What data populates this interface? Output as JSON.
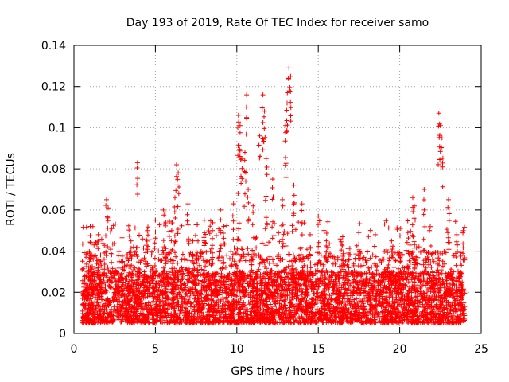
{
  "chart_data": {
    "type": "scatter",
    "title": "Day 193 of 2019, Rate Of TEC Index for receiver samo",
    "xlabel": "GPS time / hours",
    "ylabel": "ROTI / TECUs",
    "xlim": [
      0,
      25
    ],
    "ylim": [
      0,
      0.14
    ],
    "x_ticks": [
      0,
      5,
      10,
      15,
      20,
      25
    ],
    "x_tick_labels": [
      "0",
      "5",
      "10",
      "15",
      "20",
      "25"
    ],
    "y_ticks": [
      0,
      0.02,
      0.04,
      0.06,
      0.08,
      0.1,
      0.12,
      0.14
    ],
    "y_tick_labels": [
      "0",
      "0.02",
      "0.04",
      "0.06",
      "0.08",
      "0.1",
      "0.12",
      "0.14"
    ],
    "grid": true,
    "marker": "+",
    "colors": {
      "series": "#ff0000",
      "grid": "#a0a0a0",
      "axis": "#000000"
    },
    "x_range_data": [
      0.5,
      24.0
    ],
    "dense_band": {
      "typical_min": 0.005,
      "typical_max": 0.03
    },
    "series": [
      {
        "name": "ROTI",
        "x": [
          1.0,
          1.5,
          2.0,
          2.1,
          3.0,
          3.5,
          3.9,
          4.5,
          5.0,
          5.5,
          5.6,
          6.0,
          6.2,
          6.3,
          6.4,
          7.0,
          7.5,
          8.0,
          8.5,
          9.0,
          9.2,
          9.8,
          10.1,
          10.2,
          10.3,
          10.5,
          10.6,
          10.7,
          11.0,
          11.4,
          11.6,
          11.7,
          11.8,
          12.2,
          12.8,
          13.0,
          13.1,
          13.2,
          13.3,
          13.5,
          14.0,
          14.5,
          15.0,
          15.5,
          16.5,
          17.5,
          18.5,
          19.5,
          20.5,
          20.8,
          20.9,
          21.5,
          22.4,
          22.5,
          22.6,
          23.0,
          23.5,
          23.9
        ],
        "y": [
          0.052,
          0.048,
          0.065,
          0.061,
          0.035,
          0.045,
          0.083,
          0.05,
          0.055,
          0.06,
          0.059,
          0.05,
          0.066,
          0.082,
          0.078,
          0.063,
          0.045,
          0.055,
          0.05,
          0.06,
          0.052,
          0.063,
          0.106,
          0.101,
          0.085,
          0.088,
          0.116,
          0.07,
          0.062,
          0.096,
          0.116,
          0.108,
          0.085,
          0.075,
          0.065,
          0.101,
          0.117,
          0.129,
          0.125,
          0.072,
          0.063,
          0.048,
          0.057,
          0.045,
          0.047,
          0.049,
          0.048,
          0.045,
          0.049,
          0.066,
          0.062,
          0.07,
          0.107,
          0.101,
          0.095,
          0.065,
          0.048,
          0.05
        ]
      }
    ]
  }
}
